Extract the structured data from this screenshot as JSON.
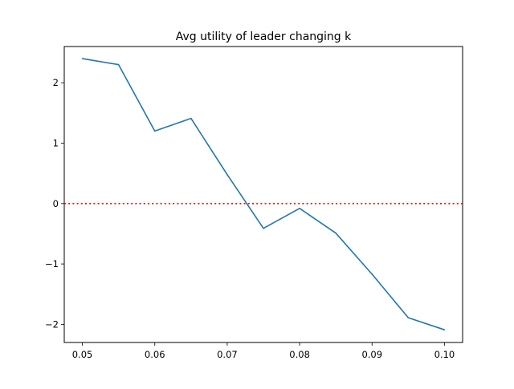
{
  "chart_data": {
    "type": "line",
    "title": "Avg utility of leader changing k",
    "xlabel": "",
    "ylabel": "",
    "xlim": [
      0.0475,
      0.1025
    ],
    "ylim": [
      -2.3,
      2.6
    ],
    "xticks": [
      0.05,
      0.06,
      0.07,
      0.08,
      0.09,
      0.1
    ],
    "xtick_labels": [
      "0.05",
      "0.06",
      "0.07",
      "0.08",
      "0.09",
      "0.10"
    ],
    "yticks": [
      -2,
      -1,
      0,
      1,
      2
    ],
    "ytick_labels": [
      "−2",
      "−1",
      "0",
      "1",
      "2"
    ],
    "grid": false,
    "series": [
      {
        "color": "#1f77b4",
        "x": [
          0.05,
          0.055,
          0.06,
          0.065,
          0.07,
          0.075,
          0.08,
          0.085,
          0.09,
          0.095,
          0.1
        ],
        "y": [
          2.4,
          2.3,
          1.2,
          1.41,
          0.48,
          -0.41,
          -0.08,
          -0.49,
          -1.17,
          -1.89,
          -2.09
        ]
      }
    ],
    "reference_lines": [
      {
        "orientation": "horizontal",
        "y": 0,
        "color": "#ff0000",
        "style": "dotted"
      }
    ]
  }
}
